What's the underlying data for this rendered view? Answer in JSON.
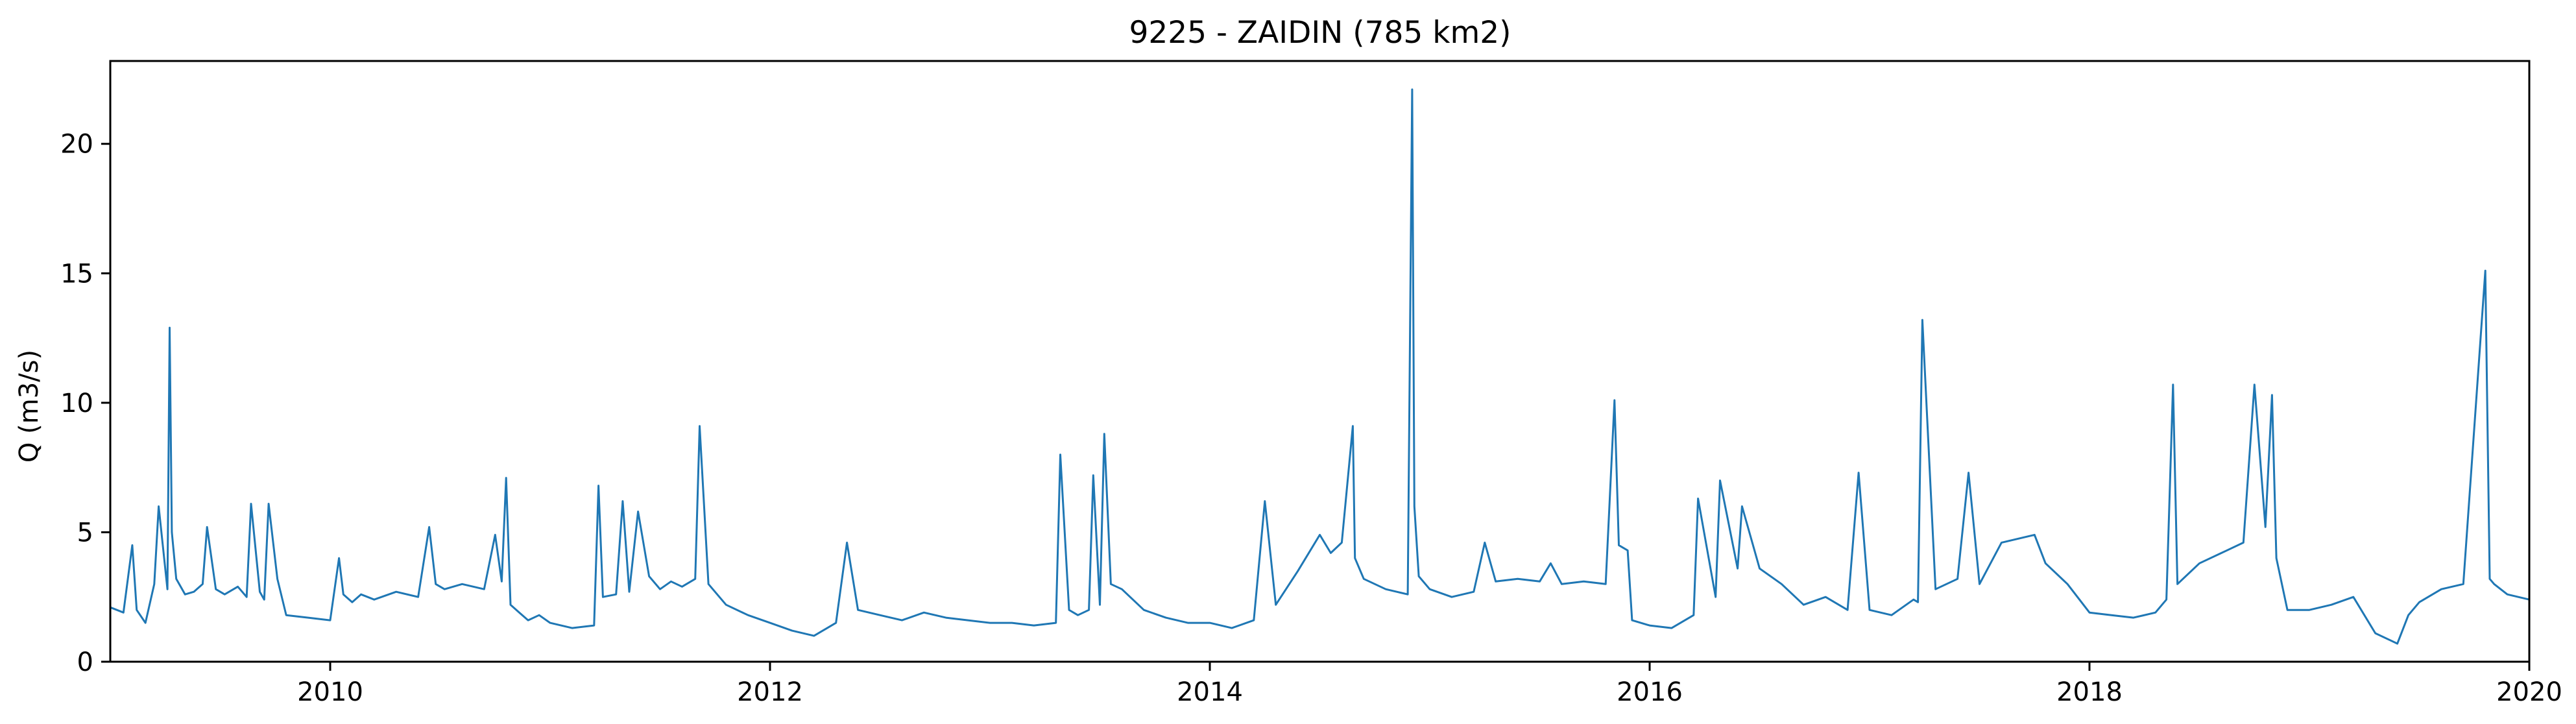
{
  "chart_data": {
    "type": "line",
    "title": "9225 - ZAIDIN (785 km2)",
    "xlabel": "",
    "ylabel": "Q (m3/s)",
    "xlim": [
      2009.0,
      2020.0
    ],
    "ylim": [
      0,
      23.2
    ],
    "x_ticks": [
      2010,
      2012,
      2014,
      2016,
      2018,
      2020
    ],
    "x_tick_labels": [
      "2010",
      "2012",
      "2014",
      "2016",
      "2018",
      "2020"
    ],
    "y_ticks": [
      0,
      5,
      10,
      15,
      20
    ],
    "y_tick_labels": [
      "0",
      "5",
      "10",
      "15",
      "20"
    ],
    "grid": false,
    "legend": "none",
    "line_color": "#1f77b4",
    "series": [
      {
        "x": [
          2009.0,
          2009.06,
          2009.1,
          2009.12,
          2009.16,
          2009.2,
          2009.22,
          2009.26,
          2009.27,
          2009.28,
          2009.3,
          2009.34,
          2009.38,
          2009.42,
          2009.44,
          2009.48,
          2009.52,
          2009.58,
          2009.62,
          2009.64,
          2009.68,
          2009.7,
          2009.72,
          2009.76,
          2009.8,
          2009.9,
          2010.0,
          2010.04,
          2010.06,
          2010.1,
          2010.14,
          2010.2,
          2010.3,
          2010.4,
          2010.45,
          2010.48,
          2010.52,
          2010.6,
          2010.7,
          2010.75,
          2010.78,
          2010.8,
          2010.82,
          2010.86,
          2010.9,
          2010.95,
          2011.0,
          2011.1,
          2011.2,
          2011.22,
          2011.24,
          2011.3,
          2011.33,
          2011.36,
          2011.4,
          2011.45,
          2011.5,
          2011.55,
          2011.6,
          2011.66,
          2011.68,
          2011.72,
          2011.8,
          2011.9,
          2012.0,
          2012.1,
          2012.2,
          2012.3,
          2012.35,
          2012.4,
          2012.5,
          2012.6,
          2012.7,
          2012.8,
          2012.9,
          2013.0,
          2013.1,
          2013.2,
          2013.3,
          2013.32,
          2013.36,
          2013.4,
          2013.45,
          2013.47,
          2013.5,
          2013.52,
          2013.55,
          2013.6,
          2013.7,
          2013.8,
          2013.9,
          2014.0,
          2014.1,
          2014.2,
          2014.25,
          2014.3,
          2014.4,
          2014.5,
          2014.55,
          2014.6,
          2014.65,
          2014.66,
          2014.7,
          2014.8,
          2014.85,
          2014.9,
          2014.92,
          2014.93,
          2014.95,
          2015.0,
          2015.1,
          2015.2,
          2015.25,
          2015.3,
          2015.4,
          2015.5,
          2015.55,
          2015.6,
          2015.7,
          2015.8,
          2015.84,
          2015.86,
          2015.9,
          2015.92,
          2016.0,
          2016.1,
          2016.2,
          2016.22,
          2016.3,
          2016.32,
          2016.4,
          2016.42,
          2016.5,
          2016.6,
          2016.7,
          2016.8,
          2016.9,
          2016.95,
          2017.0,
          2017.1,
          2017.2,
          2017.22,
          2017.24,
          2017.3,
          2017.4,
          2017.45,
          2017.5,
          2017.6,
          2017.7,
          2017.75,
          2017.8,
          2017.9,
          2018.0,
          2018.1,
          2018.2,
          2018.3,
          2018.35,
          2018.38,
          2018.4,
          2018.5,
          2018.6,
          2018.7,
          2018.75,
          2018.8,
          2018.83,
          2018.85,
          2018.9,
          2019.0,
          2019.1,
          2019.2,
          2019.3,
          2019.4,
          2019.45,
          2019.5,
          2019.6,
          2019.7,
          2019.8,
          2019.82,
          2019.84,
          2019.9,
          2020.0
        ],
        "y": [
          2.1,
          1.9,
          4.5,
          2.0,
          1.5,
          3.0,
          6.0,
          2.8,
          12.9,
          5.0,
          3.2,
          2.6,
          2.7,
          3.0,
          5.2,
          2.8,
          2.6,
          2.9,
          2.5,
          6.1,
          2.7,
          2.4,
          6.1,
          3.2,
          1.8,
          1.7,
          1.6,
          4.0,
          2.6,
          2.3,
          2.6,
          2.4,
          2.7,
          2.5,
          5.2,
          3.0,
          2.8,
          3.0,
          2.8,
          4.9,
          3.1,
          7.1,
          2.2,
          1.9,
          1.6,
          1.8,
          1.5,
          1.3,
          1.4,
          6.8,
          2.5,
          2.6,
          6.2,
          2.7,
          5.8,
          3.3,
          2.8,
          3.1,
          2.9,
          3.2,
          9.1,
          3.0,
          2.2,
          1.8,
          1.5,
          1.2,
          1.0,
          1.5,
          4.6,
          2.0,
          1.8,
          1.6,
          1.9,
          1.7,
          1.6,
          1.5,
          1.5,
          1.4,
          1.5,
          8.0,
          2.0,
          1.8,
          2.0,
          7.2,
          2.2,
          8.8,
          3.0,
          2.8,
          2.0,
          1.7,
          1.5,
          1.5,
          1.3,
          1.6,
          6.2,
          2.2,
          3.5,
          4.9,
          4.2,
          4.6,
          9.1,
          4.0,
          3.2,
          2.8,
          2.7,
          2.6,
          22.1,
          6.0,
          3.3,
          2.8,
          2.5,
          2.7,
          4.6,
          3.1,
          3.2,
          3.1,
          3.8,
          3.0,
          3.1,
          3.0,
          10.1,
          4.5,
          4.3,
          1.6,
          1.4,
          1.3,
          1.8,
          6.3,
          2.5,
          7.0,
          3.6,
          6.0,
          3.6,
          3.0,
          2.2,
          2.5,
          2.0,
          7.3,
          2.0,
          1.8,
          2.4,
          2.3,
          13.2,
          2.8,
          3.2,
          7.3,
          3.0,
          4.6,
          4.8,
          4.9,
          3.8,
          3.0,
          1.9,
          1.8,
          1.7,
          1.9,
          2.4,
          10.7,
          3.0,
          3.8,
          4.2,
          4.6,
          10.7,
          5.2,
          10.3,
          4.0,
          2.0,
          2.0,
          2.2,
          2.5,
          1.1,
          0.7,
          1.8,
          2.3,
          2.8,
          3.0,
          15.1,
          3.2,
          3.0,
          2.6,
          2.4
        ]
      }
    ]
  }
}
